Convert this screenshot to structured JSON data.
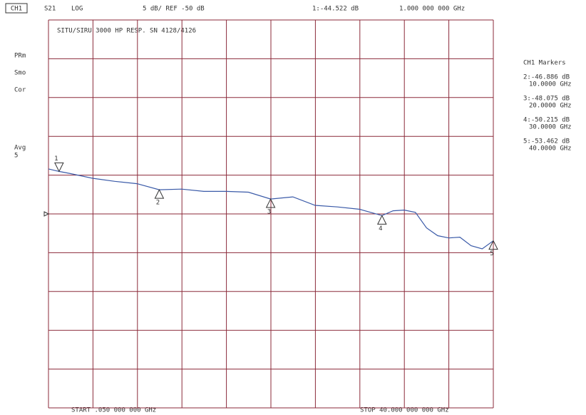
{
  "chart_data": {
    "type": "line",
    "header": {
      "channel": "CH1",
      "param": "S21",
      "format": "LOG",
      "scale": "5 dB/ REF -50 dB",
      "marker_value": "1:-44.522 dB",
      "marker_freq": "1.000 000 000 GHz"
    },
    "title": "SITU/SIRU 3000 HP RESP. SN 4128/4126",
    "status": [
      "PRm",
      "Smo",
      "Cor",
      "Avg",
      "5"
    ],
    "start_label": "START .050 000 000 GHz",
    "stop_label": "STOP 40.000 000 000 GHz",
    "x": [
      0.05,
      1,
      2,
      4,
      6,
      8,
      10,
      12,
      14,
      16,
      18,
      20,
      22,
      24,
      26,
      28,
      30,
      31,
      32,
      33,
      34,
      35,
      36,
      37,
      38,
      39,
      40
    ],
    "values": [
      -44.2,
      -44.522,
      -44.8,
      -45.4,
      -45.8,
      -46.1,
      -46.886,
      -46.8,
      -47.1,
      -47.1,
      -47.2,
      -48.075,
      -47.8,
      -48.9,
      -49.1,
      -49.4,
      -50.215,
      -49.6,
      -49.5,
      -49.8,
      -51.8,
      -52.8,
      -53.1,
      -53.0,
      -54.1,
      -54.5,
      -53.462
    ],
    "color": "#3a5aa8",
    "grid_color": "#8b2a3a",
    "xlim": [
      0.05,
      40
    ],
    "ylim": [
      -75,
      -25
    ],
    "xticks": [
      0.05,
      4.045,
      8.04,
      12.035,
      16.03,
      20.025,
      24.02,
      28.015,
      32.01,
      36.005,
      40
    ],
    "yticks": [
      -75,
      -70,
      -65,
      -60,
      -55,
      -50,
      -45,
      -40,
      -35,
      -30,
      -25
    ],
    "grid": true,
    "markers_title": "CH1 Markers",
    "markers": [
      {
        "label": "1",
        "x": 1,
        "value": -44.522
      },
      {
        "label": "2",
        "x": 10,
        "value": -46.886,
        "value_label": "2:-46.886 dB",
        "x_label": "10.0000 GHz"
      },
      {
        "label": "3",
        "x": 20,
        "value": -48.075,
        "value_label": "3:-48.075 dB",
        "x_label": "20.0000 GHz"
      },
      {
        "label": "4",
        "x": 30,
        "value": -50.215,
        "value_label": "4:-50.215 dB",
        "x_label": "30.0000 GHz"
      },
      {
        "label": "5",
        "x": 40,
        "value": -53.462,
        "value_label": "5:-53.462 dB",
        "x_label": "40.0000 GHz"
      }
    ]
  }
}
